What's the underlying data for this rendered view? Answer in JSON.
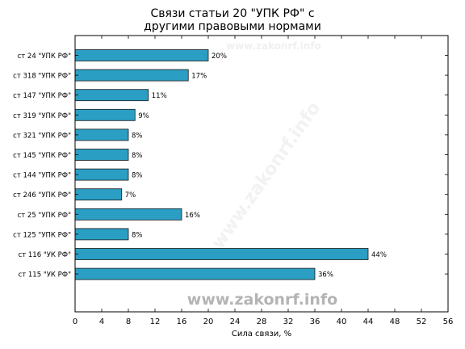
{
  "chart_data": {
    "type": "bar",
    "orientation": "horizontal",
    "title_lines": [
      "Связи статьи 20 \"УПК РФ\" с",
      "другими правовыми нормами"
    ],
    "xlabel": "Сила связи, %",
    "ylabel": "",
    "xlim": [
      0,
      56
    ],
    "xticks": [
      0,
      4,
      8,
      12,
      16,
      20,
      24,
      28,
      32,
      36,
      40,
      44,
      48,
      52,
      56
    ],
    "categories": [
      "ст 24 \"УПК РФ\"",
      "ст 318 \"УПК РФ\"",
      "ст 147 \"УПК РФ\"",
      "ст 319 \"УПК РФ\"",
      "ст 321 \"УПК РФ\"",
      "ст 145 \"УПК РФ\"",
      "ст 144 \"УПК РФ\"",
      "ст 246 \"УПК РФ\"",
      "ст 25 \"УПК РФ\"",
      "ст 125 \"УПК РФ\"",
      "ст 116 \"УК РФ\"",
      "ст 115 \"УК РФ\""
    ],
    "values": [
      20,
      17,
      11,
      9,
      8,
      8,
      8,
      7,
      16,
      8,
      44,
      36
    ],
    "value_labels": [
      "20%",
      "17%",
      "11%",
      "9%",
      "8%",
      "8%",
      "8%",
      "7%",
      "16%",
      "8%",
      "44%",
      "36%"
    ],
    "bar_color": "#2b9ec4",
    "bar_edge_color": "#1a1a1a",
    "grid": false,
    "legend": "none"
  },
  "watermark": {
    "main": "www.zakonrf.info",
    "diagonal": "www.zakonrf.info",
    "top": "www.zakonrf.info"
  }
}
